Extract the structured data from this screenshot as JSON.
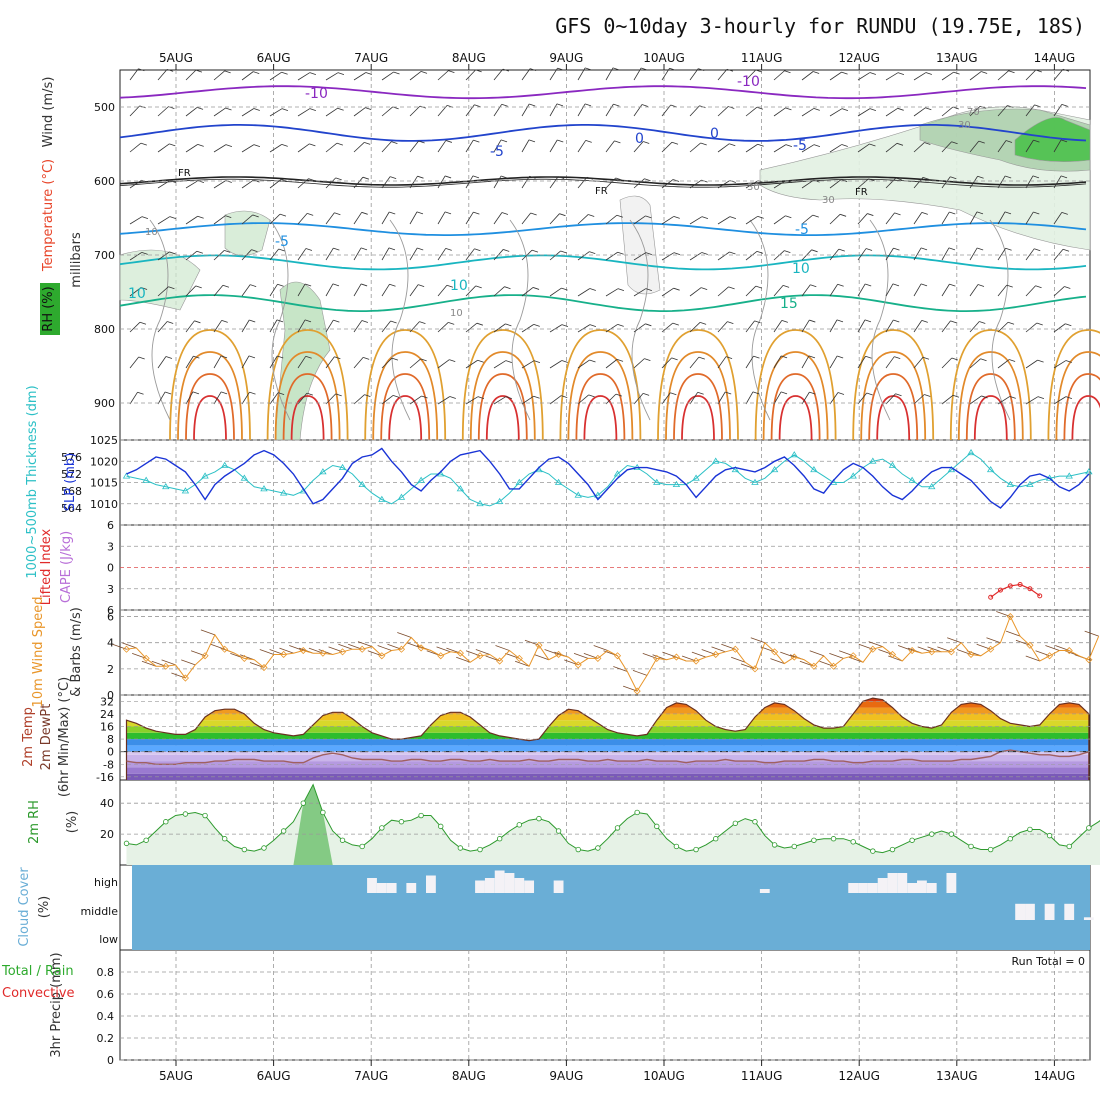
{
  "title": "GFS 0~10day 3-hourly for RUNDU (19.75E, 18S)",
  "colors": {
    "rh_shade": "#2eaa2e",
    "temp_label": "#e8452a",
    "wind_label": "#333333",
    "slp": "#1a34d6",
    "thickness": "#2cc0c6",
    "lifted_index": "#e02a2a",
    "cape": "#b86fd8",
    "wind_speed": "#e9962a",
    "rh2m": "#2d9a2d",
    "cloud": "#6aaed6",
    "precip_total": "#2eaa2e",
    "precip_conv": "#e02a2a"
  },
  "chart_data": [
    {
      "panel": "upper-air",
      "type": "contour",
      "x_dates": [
        "5AUG",
        "6AUG",
        "7AUG",
        "8AUG",
        "9AUG",
        "10AUG",
        "11AUG",
        "12AUG",
        "13AUG",
        "14AUG"
      ],
      "ylabel": "millibars",
      "ylabels": [
        "Wind (m/s)",
        "Temperature (°C)",
        "RH (%)"
      ],
      "yticks": [
        500,
        600,
        700,
        800,
        900
      ],
      "ylim": [
        450,
        950
      ],
      "y_scale": "reversed",
      "isotherm_labels": [
        "-10",
        "-10",
        "-5",
        "-5",
        "FR",
        "FR",
        "FR",
        "-5",
        "-5",
        "10",
        "10",
        "10",
        "15",
        "0",
        "0"
      ],
      "rh_labels": [
        "10",
        "10",
        "30",
        "30",
        "70",
        "30"
      ],
      "freezing_level_label": "FR"
    },
    {
      "panel": "slp-thickness",
      "type": "line",
      "ylabels": [
        "1000~500mb Thickness (dm)",
        "SLP (mb)"
      ],
      "y_left_ticks": [
        564,
        568,
        572,
        576
      ],
      "y_right_ticks": [
        1010,
        1015,
        1020,
        1025
      ],
      "y_right_lim": [
        1005,
        1025
      ],
      "y_left_lim": [
        560,
        580
      ],
      "series": [
        {
          "name": "SLP (mb)",
          "axis": "right",
          "values": [
            1017.0,
            1018.0,
            1019.5,
            1021.0,
            1020.5,
            1019.0,
            1017.5,
            1014.5,
            1011.0,
            1014.5,
            1016.5,
            1018.0,
            1019.5,
            1021.5,
            1022.5,
            1021.5,
            1019.5,
            1017.0,
            1013.5,
            1010.0,
            1011.0,
            1013.5,
            1016.0,
            1019.5,
            1021.0,
            1021.5,
            1023.0,
            1020.0,
            1017.5,
            1014.5,
            1013.0,
            1015.5,
            1017.5,
            1020.0,
            1021.5,
            1022.0,
            1022.5,
            1020.0,
            1017.0,
            1013.5,
            1013.5,
            1016.0,
            1018.5,
            1020.5,
            1021.0,
            1019.5,
            1017.0,
            1014.5,
            1011.0,
            1013.5,
            1016.0,
            1018.0,
            1018.5,
            1018.5,
            1018.0,
            1017.5,
            1016.5,
            1014.5,
            1011.5,
            1014.0,
            1016.5,
            1018.0,
            1018.5,
            1018.0,
            1017.5,
            1018.5,
            1020.0,
            1021.0,
            1019.0,
            1016.5,
            1013.5,
            1012.5,
            1015.5,
            1018.0,
            1019.5,
            1018.5,
            1016.5,
            1014.0,
            1012.0,
            1011.0,
            1013.0,
            1015.5,
            1017.5,
            1018.5,
            1018.5,
            1017.0,
            1015.5,
            1013.0,
            1010.5,
            1009.0,
            1011.5,
            1014.5,
            1016.5,
            1017.0,
            1016.0,
            1014.0,
            1013.0,
            1014.5,
            1017.0
          ]
        },
        {
          "name": "Thickness (dm)",
          "axis": "left",
          "values": [
            571.5,
            571.0,
            570.5,
            569.5,
            569.0,
            568.5,
            568.0,
            569.5,
            571.5,
            572.5,
            574.0,
            573.0,
            571.0,
            569.0,
            568.5,
            568.0,
            567.5,
            567.0,
            568.0,
            570.5,
            572.5,
            574.0,
            573.5,
            572.0,
            569.5,
            567.5,
            566.0,
            565.0,
            566.5,
            568.5,
            570.5,
            572.0,
            572.0,
            571.0,
            568.5,
            566.0,
            565.0,
            564.5,
            565.5,
            567.5,
            570.0,
            572.0,
            573.0,
            572.0,
            570.0,
            568.5,
            567.0,
            566.5,
            567.0,
            569.0,
            572.0,
            574.0,
            573.5,
            572.0,
            570.0,
            569.5,
            569.5,
            569.5,
            571.0,
            573.0,
            575.0,
            574.5,
            573.0,
            571.0,
            570.0,
            571.0,
            573.0,
            575.0,
            576.5,
            575.0,
            573.0,
            571.5,
            570.0,
            570.0,
            571.5,
            573.5,
            575.0,
            575.5,
            574.0,
            572.0,
            570.5,
            569.0,
            569.0,
            571.0,
            573.0,
            575.0,
            577.0,
            575.5,
            573.0,
            571.0,
            569.5,
            569.0,
            569.5,
            570.5,
            571.0,
            571.5,
            571.5,
            572.0,
            572.5
          ]
        }
      ]
    },
    {
      "panel": "stability",
      "type": "line",
      "ylabels": [
        "Lifted Index",
        "CAPE (J/kg)"
      ],
      "yticks": [
        -6,
        -3,
        0,
        3,
        6
      ],
      "ytick_labels": [
        "6",
        "3",
        "0",
        "3",
        "6"
      ],
      "ylim": [
        -6,
        6
      ],
      "series": [
        {
          "name": "Lifted Index",
          "x_index": [
            88,
            89,
            90,
            91,
            92,
            93
          ],
          "values": [
            4.2,
            3.2,
            2.6,
            2.4,
            3.0,
            4.0
          ]
        }
      ]
    },
    {
      "panel": "10m-wind",
      "type": "line",
      "ylabels": [
        "10m Wind Speed",
        "& Barbs (m/s)"
      ],
      "yticks": [
        0,
        2,
        4,
        6
      ],
      "ylim": [
        0,
        6.5
      ],
      "series": [
        {
          "name": "10m Wind Speed",
          "values": [
            3.5,
            3.6,
            2.8,
            2.2,
            2.2,
            2.3,
            1.3,
            2.3,
            3.0,
            4.6,
            3.5,
            3.2,
            2.8,
            2.7,
            2.1,
            3.1,
            3.1,
            3.2,
            3.4,
            3.2,
            3.2,
            3.1,
            3.3,
            3.5,
            3.5,
            3.7,
            3.0,
            3.4,
            3.5,
            4.4,
            3.6,
            3.4,
            3.0,
            3.3,
            3.2,
            2.5,
            3.0,
            3.1,
            2.6,
            3.4,
            2.8,
            2.2,
            3.8,
            2.7,
            3.1,
            2.9,
            2.3,
            2.8,
            2.8,
            3.4,
            3.0,
            1.8,
            0.3,
            1.5,
            2.8,
            2.7,
            2.9,
            2.6,
            2.6,
            2.9,
            3.1,
            3.3,
            3.5,
            2.5,
            2.0,
            4.0,
            3.3,
            2.4,
            2.9,
            2.7,
            2.2,
            3.0,
            2.2,
            2.8,
            3.0,
            2.5,
            3.5,
            3.7,
            3.1,
            2.6,
            3.4,
            3.2,
            3.3,
            3.3,
            3.3,
            4.0,
            3.1,
            3.0,
            3.5,
            4.0,
            6.0,
            4.5,
            3.8,
            2.6,
            3.0,
            3.4,
            3.4,
            3.0,
            2.7,
            4.5
          ]
        }
      ]
    },
    {
      "panel": "2m-temperature",
      "type": "area",
      "ylabels": [
        "2m Temp",
        "2m DewPt",
        "(6hr Min/Max) (°C)"
      ],
      "yticks": [
        -16,
        -8,
        0,
        8,
        16,
        24,
        32
      ],
      "ytick_labels": [
        "-16",
        "-8",
        "0",
        "8",
        "16",
        "24",
        "32"
      ],
      "ylim": [
        -18,
        36
      ],
      "series": [
        {
          "name": "2m Temp",
          "values": [
            20,
            18,
            15,
            13,
            12,
            11,
            11,
            14,
            22,
            26,
            27,
            27,
            24,
            18,
            14,
            12,
            11,
            10,
            11,
            17,
            23,
            25,
            25,
            21,
            16,
            12,
            10,
            8,
            8,
            9,
            10,
            17,
            23,
            25,
            25,
            22,
            17,
            12,
            10,
            9,
            8,
            7,
            8,
            16,
            23,
            27,
            26,
            22,
            18,
            14,
            12,
            11,
            10,
            11,
            20,
            28,
            31,
            30,
            26,
            20,
            16,
            14,
            13,
            14,
            22,
            28,
            31,
            30,
            26,
            21,
            17,
            15,
            15,
            16,
            24,
            32,
            34,
            33,
            28,
            22,
            18,
            16,
            15,
            17,
            25,
            30,
            31,
            30,
            26,
            21,
            18,
            17,
            16,
            17,
            24,
            30,
            31,
            30,
            24
          ]
        },
        {
          "name": "2m DewPt",
          "values": [
            -6,
            -7,
            -7,
            -8,
            -8,
            -8,
            -7,
            -7,
            -7,
            -6,
            -6,
            -5,
            -5,
            -5,
            -6,
            -6,
            -6,
            -7,
            -7,
            -4,
            -2,
            -1,
            -2,
            -4,
            -5,
            -5,
            -5,
            -6,
            -6,
            -5,
            -5,
            -6,
            -6,
            -5,
            -5,
            -6,
            -6,
            -5,
            -6,
            -6,
            -6,
            -5,
            -6,
            -6,
            -5,
            -5,
            -5,
            -6,
            -6,
            -5,
            -6,
            -6,
            -6,
            -5,
            -6,
            -6,
            -6,
            -7,
            -6,
            -6,
            -6,
            -5,
            -6,
            -6,
            -6,
            -7,
            -7,
            -6,
            -6,
            -6,
            -5,
            -5,
            -6,
            -6,
            -7,
            -7,
            -6,
            -6,
            -6,
            -5,
            -5,
            -6,
            -6,
            -6,
            -6,
            -5,
            -5,
            -4,
            -3,
            0,
            1,
            0,
            -1,
            -2,
            -2,
            -3,
            -3,
            -2,
            0
          ]
        }
      ]
    },
    {
      "panel": "2m-rh",
      "type": "line",
      "ylabels": [
        "2m RH",
        "(%)"
      ],
      "yticks": [
        20,
        40
      ],
      "ylim": [
        0,
        55
      ],
      "series": [
        {
          "name": "2m RH",
          "values": [
            14,
            13,
            16,
            22,
            28,
            32,
            33,
            34,
            32,
            24,
            17,
            12,
            10,
            9,
            11,
            16,
            22,
            28,
            40,
            52,
            34,
            22,
            16,
            13,
            12,
            17,
            24,
            29,
            28,
            29,
            32,
            32,
            25,
            16,
            11,
            9,
            10,
            13,
            17,
            22,
            26,
            29,
            30,
            28,
            22,
            14,
            10,
            9,
            11,
            17,
            24,
            30,
            34,
            33,
            25,
            17,
            12,
            9,
            10,
            13,
            17,
            22,
            27,
            30,
            28,
            19,
            13,
            11,
            12,
            14,
            16,
            17,
            17,
            17,
            15,
            12,
            9,
            8,
            10,
            13,
            16,
            18,
            20,
            22,
            20,
            16,
            12,
            10,
            10,
            13,
            17,
            21,
            23,
            23,
            19,
            13,
            12,
            18,
            24,
            28,
            33
          ]
        }
      ]
    },
    {
      "panel": "cloud-cover",
      "type": "bar",
      "ylabels": [
        "Cloud Cover",
        "(%)"
      ],
      "ytick_labels": [
        "high",
        "middle",
        "low"
      ],
      "layers": [
        {
          "name": "high",
          "values": [
            0,
            0,
            0,
            0,
            0,
            0,
            0,
            0,
            0,
            0,
            0,
            0,
            0,
            0,
            0,
            0,
            0,
            0,
            0,
            0,
            0,
            0,
            0,
            0,
            0,
            30,
            20,
            20,
            0,
            20,
            0,
            35,
            0,
            0,
            0,
            0,
            25,
            30,
            45,
            40,
            30,
            25,
            0,
            0,
            25,
            0,
            0,
            0,
            0,
            0,
            0,
            0,
            0,
            0,
            0,
            0,
            0,
            0,
            0,
            0,
            0,
            0,
            0,
            0,
            0,
            8,
            0,
            0,
            0,
            0,
            0,
            0,
            0,
            0,
            20,
            20,
            20,
            30,
            40,
            40,
            20,
            25,
            20,
            0,
            40,
            0,
            0,
            0,
            0,
            0,
            0,
            0,
            0,
            0,
            0,
            0,
            0,
            0,
            0
          ]
        },
        {
          "name": "middle",
          "values": [
            0,
            0,
            0,
            0,
            0,
            0,
            0,
            0,
            0,
            0,
            0,
            0,
            0,
            0,
            0,
            0,
            0,
            0,
            0,
            0,
            0,
            0,
            0,
            0,
            0,
            0,
            0,
            0,
            0,
            0,
            0,
            0,
            0,
            0,
            0,
            0,
            0,
            0,
            0,
            0,
            0,
            0,
            0,
            0,
            0,
            0,
            0,
            0,
            0,
            0,
            0,
            0,
            0,
            0,
            0,
            0,
            0,
            0,
            0,
            0,
            0,
            0,
            0,
            0,
            0,
            0,
            0,
            0,
            0,
            0,
            0,
            0,
            0,
            0,
            0,
            0,
            0,
            0,
            0,
            0,
            0,
            0,
            0,
            0,
            0,
            0,
            0,
            0,
            0,
            0,
            0,
            30,
            30,
            0,
            30,
            0,
            30,
            0,
            5
          ]
        }
      ]
    },
    {
      "panel": "precipitation",
      "type": "bar",
      "ylabels": [
        "3hr Precip (mm)",
        "Total / Rain",
        "Convective"
      ],
      "yticks": [
        0,
        0.2,
        0.4,
        0.6,
        0.8
      ],
      "ylim": [
        0,
        1.0
      ],
      "run_total": "Run Total = 0",
      "values": []
    }
  ]
}
